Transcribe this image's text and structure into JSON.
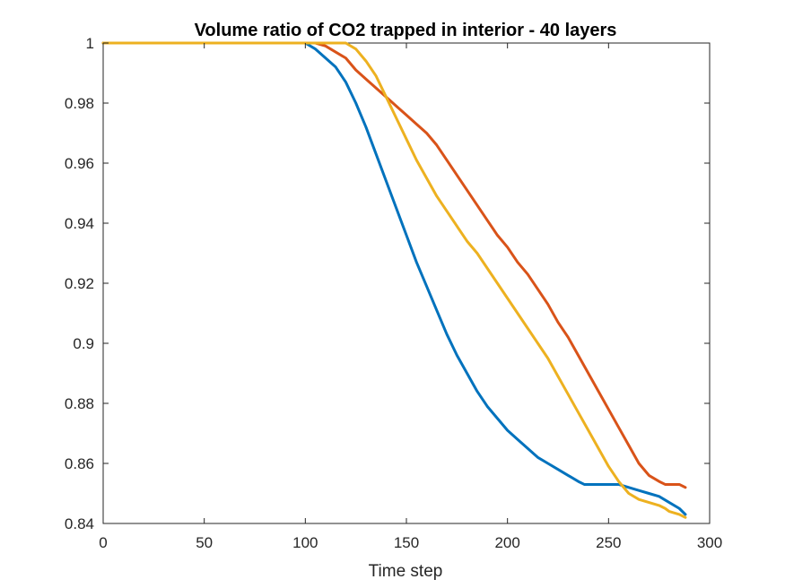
{
  "chart_data": {
    "type": "line",
    "title": "Volume ratio of CO2 trapped in interior - 40 layers",
    "xlabel": "Time step",
    "ylabel": "",
    "xlim": [
      0,
      300
    ],
    "ylim": [
      0.84,
      1
    ],
    "xticks": [
      0,
      50,
      100,
      150,
      200,
      250,
      300
    ],
    "xtick_labels": [
      "0",
      "50",
      "100",
      "150",
      "200",
      "250",
      "300"
    ],
    "yticks": [
      0.84,
      0.86,
      0.88,
      0.9,
      0.92,
      0.94,
      0.96,
      0.98,
      1
    ],
    "ytick_labels": [
      "0.84",
      "0.86",
      "0.88",
      "0.9",
      "0.92",
      "0.94",
      "0.96",
      "0.98",
      "1"
    ],
    "grid": false,
    "legend": false,
    "series": [
      {
        "color": "#0072BD",
        "x": [
          0,
          100,
          105,
          110,
          115,
          120,
          125,
          130,
          135,
          140,
          145,
          150,
          155,
          160,
          165,
          170,
          175,
          180,
          185,
          190,
          195,
          200,
          205,
          210,
          215,
          220,
          225,
          230,
          235,
          238,
          240,
          245,
          250,
          255,
          260,
          265,
          270,
          275,
          280,
          285,
          288
        ],
        "y": [
          1.0,
          1.0,
          0.998,
          0.995,
          0.992,
          0.987,
          0.98,
          0.972,
          0.963,
          0.954,
          0.945,
          0.936,
          0.927,
          0.919,
          0.911,
          0.903,
          0.896,
          0.89,
          0.884,
          0.879,
          0.875,
          0.871,
          0.868,
          0.865,
          0.862,
          0.86,
          0.858,
          0.856,
          0.854,
          0.853,
          0.853,
          0.853,
          0.853,
          0.853,
          0.852,
          0.851,
          0.85,
          0.849,
          0.847,
          0.845,
          0.843
        ]
      },
      {
        "color": "#D95319",
        "x": [
          0,
          105,
          110,
          115,
          120,
          125,
          130,
          135,
          140,
          145,
          150,
          155,
          160,
          165,
          170,
          175,
          180,
          185,
          190,
          195,
          200,
          205,
          210,
          215,
          220,
          225,
          230,
          235,
          240,
          245,
          250,
          255,
          260,
          265,
          270,
          275,
          278,
          280,
          285,
          288
        ],
        "y": [
          1.0,
          1.0,
          0.999,
          0.997,
          0.995,
          0.991,
          0.988,
          0.985,
          0.982,
          0.979,
          0.976,
          0.973,
          0.97,
          0.966,
          0.961,
          0.956,
          0.951,
          0.946,
          0.941,
          0.936,
          0.932,
          0.927,
          0.923,
          0.918,
          0.913,
          0.907,
          0.902,
          0.896,
          0.89,
          0.884,
          0.878,
          0.872,
          0.866,
          0.86,
          0.856,
          0.854,
          0.853,
          0.853,
          0.853,
          0.852
        ]
      },
      {
        "color": "#EDB120",
        "x": [
          0,
          120,
          125,
          130,
          135,
          140,
          145,
          150,
          155,
          160,
          165,
          170,
          175,
          180,
          185,
          190,
          195,
          200,
          205,
          210,
          215,
          220,
          225,
          230,
          235,
          240,
          245,
          250,
          255,
          260,
          265,
          270,
          275,
          278,
          280,
          285,
          288
        ],
        "y": [
          1.0,
          1.0,
          0.998,
          0.994,
          0.989,
          0.982,
          0.975,
          0.968,
          0.961,
          0.955,
          0.949,
          0.944,
          0.939,
          0.934,
          0.93,
          0.925,
          0.92,
          0.915,
          0.91,
          0.905,
          0.9,
          0.895,
          0.889,
          0.883,
          0.877,
          0.871,
          0.865,
          0.859,
          0.854,
          0.85,
          0.848,
          0.847,
          0.846,
          0.845,
          0.844,
          0.843,
          0.842
        ]
      }
    ]
  }
}
